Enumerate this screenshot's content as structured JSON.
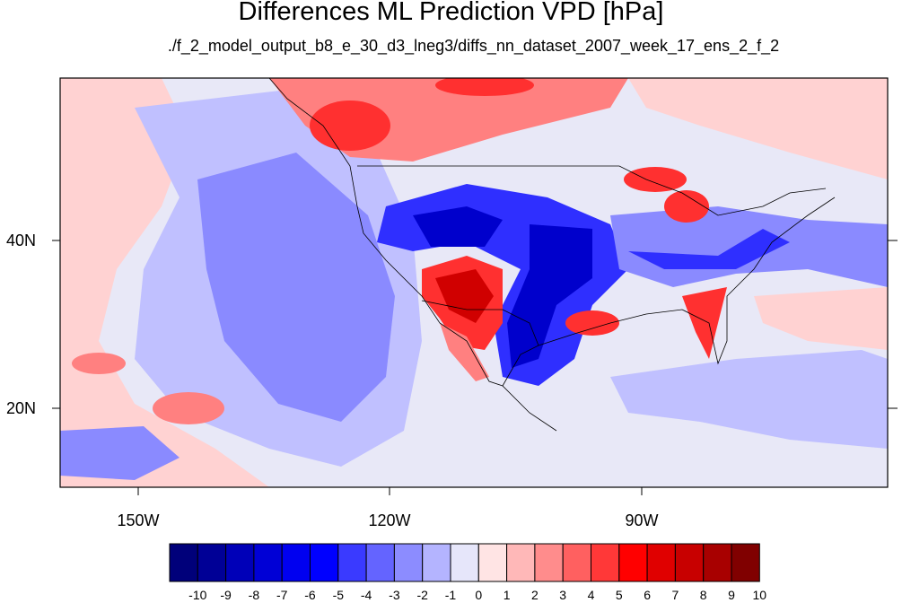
{
  "title": "Differences ML Prediction VPD [hPa]",
  "subtitle": "./f_2_model_output_b8_e_30_d3_lneg3/diffs_nn_dataset_2007_week_17_ens_2_f_2",
  "axes": {
    "lat_labels": [
      "40N",
      "20N"
    ],
    "lon_labels": [
      "150W",
      "120W",
      "90W"
    ]
  },
  "colorbar": {
    "labels": [
      "-10",
      "-9",
      "-8",
      "-7",
      "-6",
      "-5",
      "-4",
      "-3",
      "-2",
      "-1",
      "0",
      "1",
      "2",
      "3",
      "4",
      "5",
      "6",
      "7",
      "8",
      "9",
      "10"
    ],
    "colors": [
      "#00007a",
      "#000096",
      "#0000b8",
      "#0000d6",
      "#0000f0",
      "#0000ff",
      "#3a3aff",
      "#6464ff",
      "#8c8cff",
      "#b4b4ff",
      "#e6e6fa",
      "#ffe4e4",
      "#ffb8b8",
      "#ff8c8c",
      "#ff6060",
      "#ff3838",
      "#ff0000",
      "#e00000",
      "#c80000",
      "#a80000",
      "#800000"
    ]
  },
  "map_colors": {
    "background": "#e8e8f7",
    "light_blue": "#c0c0ff",
    "mid_blue": "#8a8aff",
    "strong_blue": "#2f2fff",
    "deep_blue": "#0000cc",
    "light_red": "#ffd2d2",
    "mid_red": "#ff8080",
    "strong_red": "#ff3030",
    "deep_red": "#d00000"
  }
}
